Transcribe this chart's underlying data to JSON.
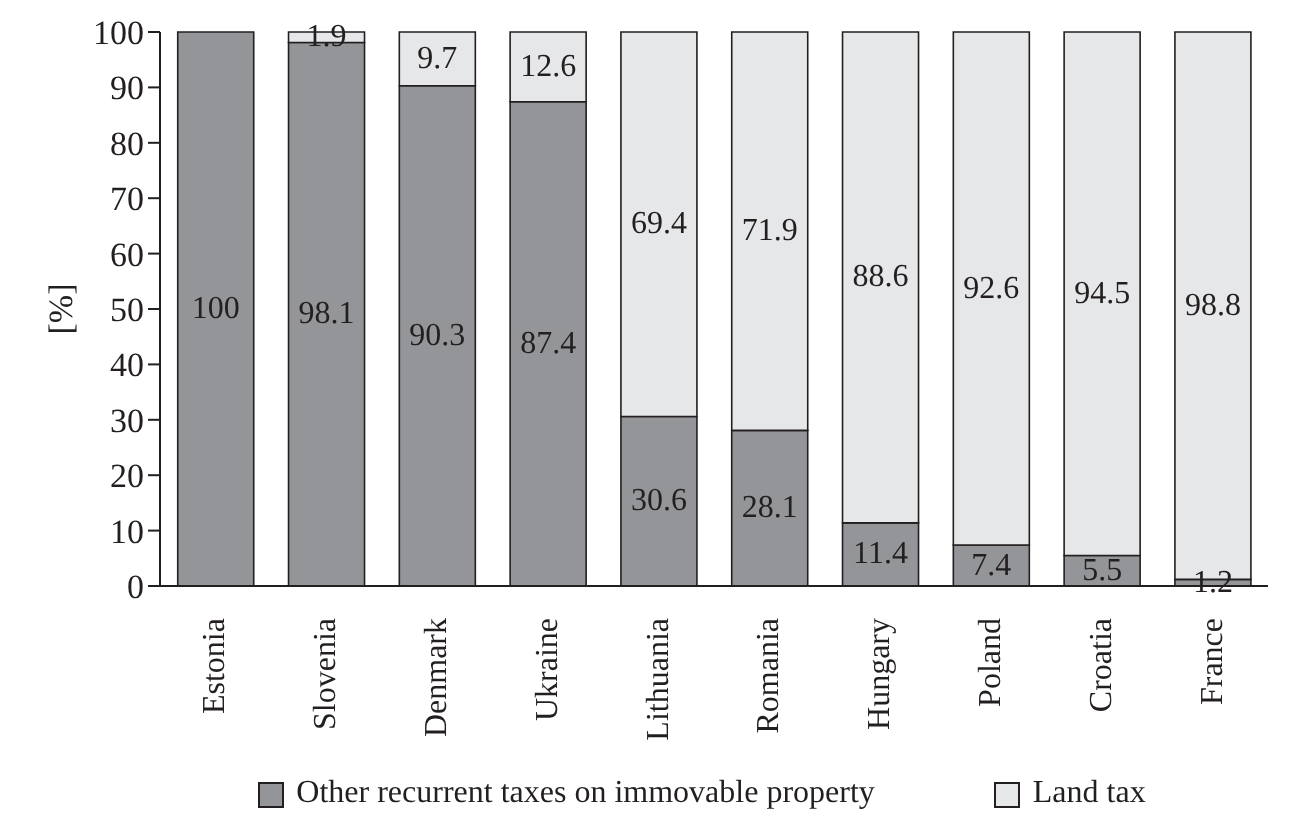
{
  "chart_data": {
    "type": "bar",
    "stacked": true,
    "ylabel": "[%]",
    "categories": [
      "Estonia",
      "Slovenia",
      "Denmark",
      "Ukraine",
      "Lithuania",
      "Romania",
      "Hungary",
      "Poland",
      "Croatia",
      "France"
    ],
    "series": [
      {
        "name": "Other recurrent taxes on immovable property",
        "color": "#939598",
        "values": [
          100,
          98.1,
          90.3,
          87.4,
          30.6,
          28.1,
          11.4,
          7.4,
          5.5,
          1.2
        ],
        "value_labels": [
          "100",
          "98.1",
          "90.3",
          "87.4",
          "30.6",
          "28.1",
          "11.4",
          "7.4",
          "5.5",
          "1.2"
        ]
      },
      {
        "name": "Land tax",
        "color": "#e6e7e8",
        "values": [
          0,
          1.9,
          9.7,
          12.6,
          69.4,
          71.9,
          88.6,
          92.6,
          94.5,
          98.8
        ],
        "value_labels": [
          null,
          "1.9",
          "9.7",
          "12.6",
          "69.4",
          "71.9",
          "88.6",
          "92.6",
          "94.5",
          "98.8"
        ]
      }
    ],
    "ylim": [
      0,
      100
    ],
    "yticks": [
      0,
      10,
      20,
      30,
      40,
      50,
      60,
      70,
      80,
      90,
      100
    ],
    "grid": false,
    "legend": "bottom"
  }
}
